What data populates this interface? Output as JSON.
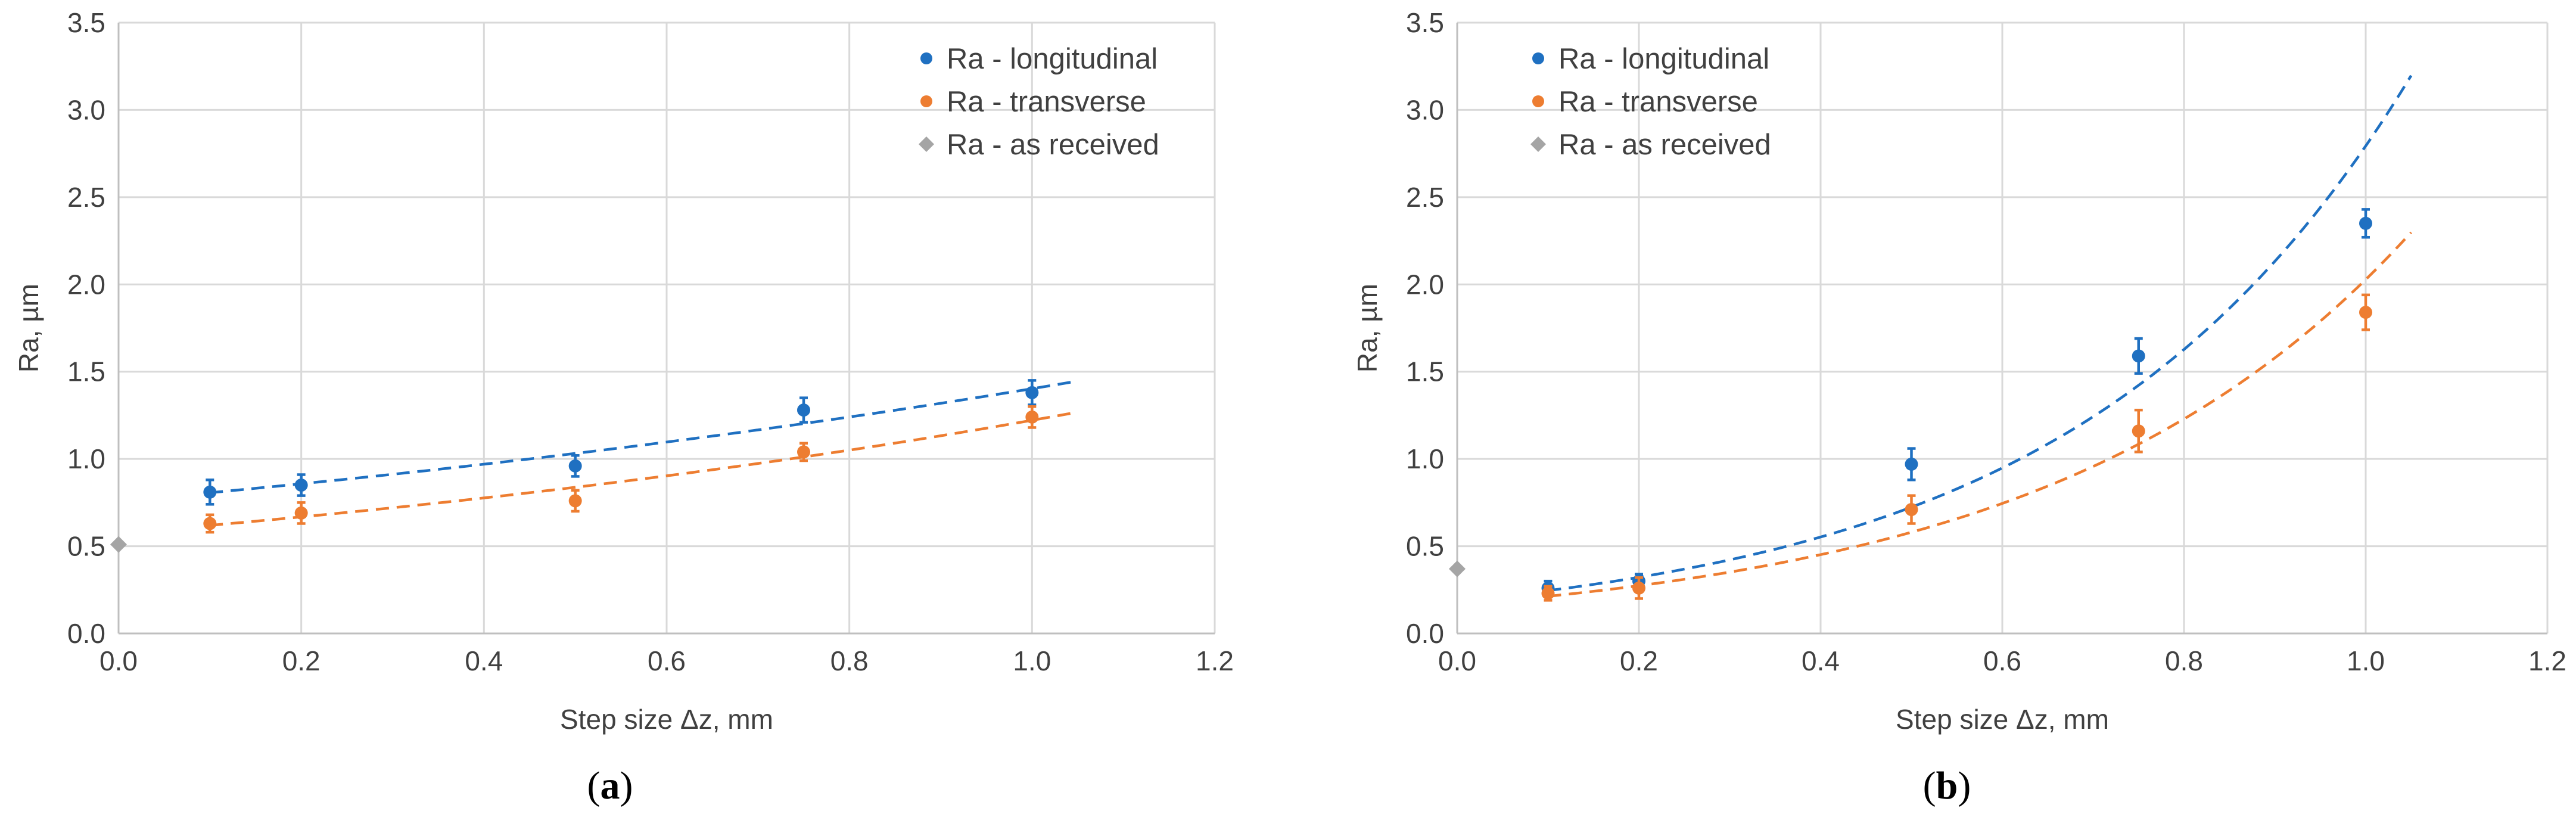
{
  "colors": {
    "longitudinal": "#1f70c1",
    "transverse": "#ed7d31",
    "as_received": "#a5a5a5",
    "grid": "#d9d9d9",
    "axis": "#bfbfbf"
  },
  "chart_data": [
    {
      "type": "scatter",
      "panel_label": "a",
      "xlabel": "Step size Δz,  mm",
      "ylabel": "Ra,  µm",
      "xlim": [
        0,
        1.2
      ],
      "ylim": [
        0,
        3.5
      ],
      "x_ticks": [
        "0.0",
        "0.2",
        "0.4",
        "0.6",
        "0.8",
        "1.0",
        "1.2"
      ],
      "y_ticks": [
        "0.0",
        "0.5",
        "1.0",
        "1.5",
        "2.0",
        "2.5",
        "3.0",
        "3.5"
      ],
      "grid": true,
      "legend_position": "top-right",
      "series": [
        {
          "name": "Ra - longitudinal",
          "color_key": "longitudinal",
          "marker": "circle",
          "x": [
            0.1,
            0.2,
            0.5,
            0.75,
            1.0
          ],
          "y": [
            0.81,
            0.85,
            0.96,
            1.28,
            1.38
          ],
          "error": [
            0.07,
            0.06,
            0.06,
            0.07,
            0.07
          ],
          "trendline": {
            "type": "exponential",
            "a": 0.7585,
            "b": 0.6147,
            "x_range": [
              0.1,
              1.05
            ]
          }
        },
        {
          "name": "Ra - transverse",
          "color_key": "transverse",
          "marker": "circle",
          "x": [
            0.1,
            0.2,
            0.5,
            0.75,
            1.0
          ],
          "y": [
            0.63,
            0.69,
            0.76,
            1.04,
            1.24
          ],
          "error": [
            0.05,
            0.06,
            0.06,
            0.05,
            0.06
          ],
          "trendline": {
            "type": "exponential",
            "a": 0.5744,
            "b": 0.7544,
            "x_range": [
              0.1,
              1.05
            ]
          }
        },
        {
          "name": "Ra - as received",
          "color_key": "as_received",
          "marker": "diamond",
          "x": [
            0.0
          ],
          "y": [
            0.51
          ],
          "error": [
            0.0
          ]
        }
      ]
    },
    {
      "type": "scatter",
      "panel_label": "b",
      "xlabel": "Step size Δz,  mm",
      "ylabel": "Ra,  µm",
      "xlim": [
        0,
        1.2
      ],
      "ylim": [
        0,
        3.5
      ],
      "x_ticks": [
        "0.0",
        "0.2",
        "0.4",
        "0.6",
        "0.8",
        "1.0",
        "1.2"
      ],
      "y_ticks": [
        "0.0",
        "0.5",
        "1.0",
        "1.5",
        "2.0",
        "2.5",
        "3.0",
        "3.5"
      ],
      "grid": true,
      "legend_position": "top-left",
      "series": [
        {
          "name": "Ra - longitudinal",
          "color_key": "longitudinal",
          "marker": "circle",
          "x": [
            0.1,
            0.2,
            0.5,
            0.75,
            1.0
          ],
          "y": [
            0.26,
            0.3,
            0.97,
            1.59,
            2.35
          ],
          "error": [
            0.04,
            0.04,
            0.09,
            0.1,
            0.08
          ],
          "trendline": {
            "type": "exponential",
            "a": 0.1876,
            "b": 2.7006,
            "x_range": [
              0.1,
              1.05
            ]
          }
        },
        {
          "name": "Ra - transverse",
          "color_key": "transverse",
          "marker": "circle",
          "x": [
            0.1,
            0.2,
            0.5,
            0.75,
            1.0
          ],
          "y": [
            0.23,
            0.26,
            0.71,
            1.16,
            1.84
          ],
          "error": [
            0.04,
            0.06,
            0.08,
            0.12,
            0.1
          ],
          "trendline": {
            "type": "exponential",
            "a": 0.1659,
            "b": 2.5033,
            "x_range": [
              0.1,
              1.05
            ]
          }
        },
        {
          "name": "Ra - as received",
          "color_key": "as_received",
          "marker": "diamond",
          "x": [
            0.0
          ],
          "y": [
            0.37
          ],
          "error": [
            0.0
          ]
        }
      ]
    }
  ]
}
